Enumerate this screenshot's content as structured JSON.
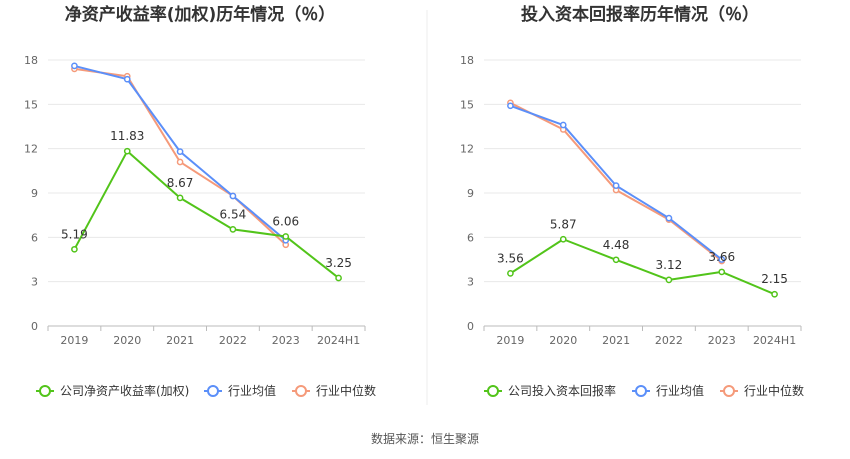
{
  "source": "数据来源：恒生聚源",
  "chart_data": [
    {
      "type": "line",
      "title": "净资产收益率(加权)历年情况（％）",
      "categories": [
        "2019",
        "2020",
        "2021",
        "2022",
        "2023",
        "2024H1"
      ],
      "ylim": [
        0,
        18
      ],
      "yticks": [
        0,
        3,
        6,
        9,
        12,
        15,
        18
      ],
      "grid": true,
      "legend_position": "bottom-left",
      "series": [
        {
          "name": "公司净资产收益率(加权)",
          "color": "#52c41a",
          "values": [
            5.19,
            11.83,
            8.67,
            6.54,
            6.06,
            3.25
          ],
          "labels": [
            "5.19",
            "11.83",
            "8.67",
            "6.54",
            "6.06",
            "3.25"
          ]
        },
        {
          "name": "行业均值",
          "color": "#5b8ff9",
          "values": [
            17.6,
            16.7,
            11.8,
            8.8,
            5.8,
            null
          ]
        },
        {
          "name": "行业中位数",
          "color": "#f59a7a",
          "values": [
            17.4,
            16.9,
            11.1,
            8.8,
            5.5,
            null
          ]
        }
      ]
    },
    {
      "type": "line",
      "title": "投入资本回报率历年情况（％）",
      "categories": [
        "2019",
        "2020",
        "2021",
        "2022",
        "2023",
        "2024H1"
      ],
      "ylim": [
        0,
        18
      ],
      "yticks": [
        0,
        3,
        6,
        9,
        12,
        15,
        18
      ],
      "grid": true,
      "legend_position": "bottom-left",
      "series": [
        {
          "name": "公司投入资本回报率",
          "color": "#52c41a",
          "values": [
            3.56,
            5.87,
            4.48,
            3.12,
            3.66,
            2.15
          ],
          "labels": [
            "3.56",
            "5.87",
            "4.48",
            "3.12",
            "3.66",
            "2.15"
          ]
        },
        {
          "name": "行业均值",
          "color": "#5b8ff9",
          "values": [
            14.9,
            13.6,
            9.5,
            7.3,
            4.5,
            null
          ]
        },
        {
          "name": "行业中位数",
          "color": "#f59a7a",
          "values": [
            15.1,
            13.3,
            9.2,
            7.2,
            4.4,
            null
          ]
        }
      ]
    }
  ]
}
